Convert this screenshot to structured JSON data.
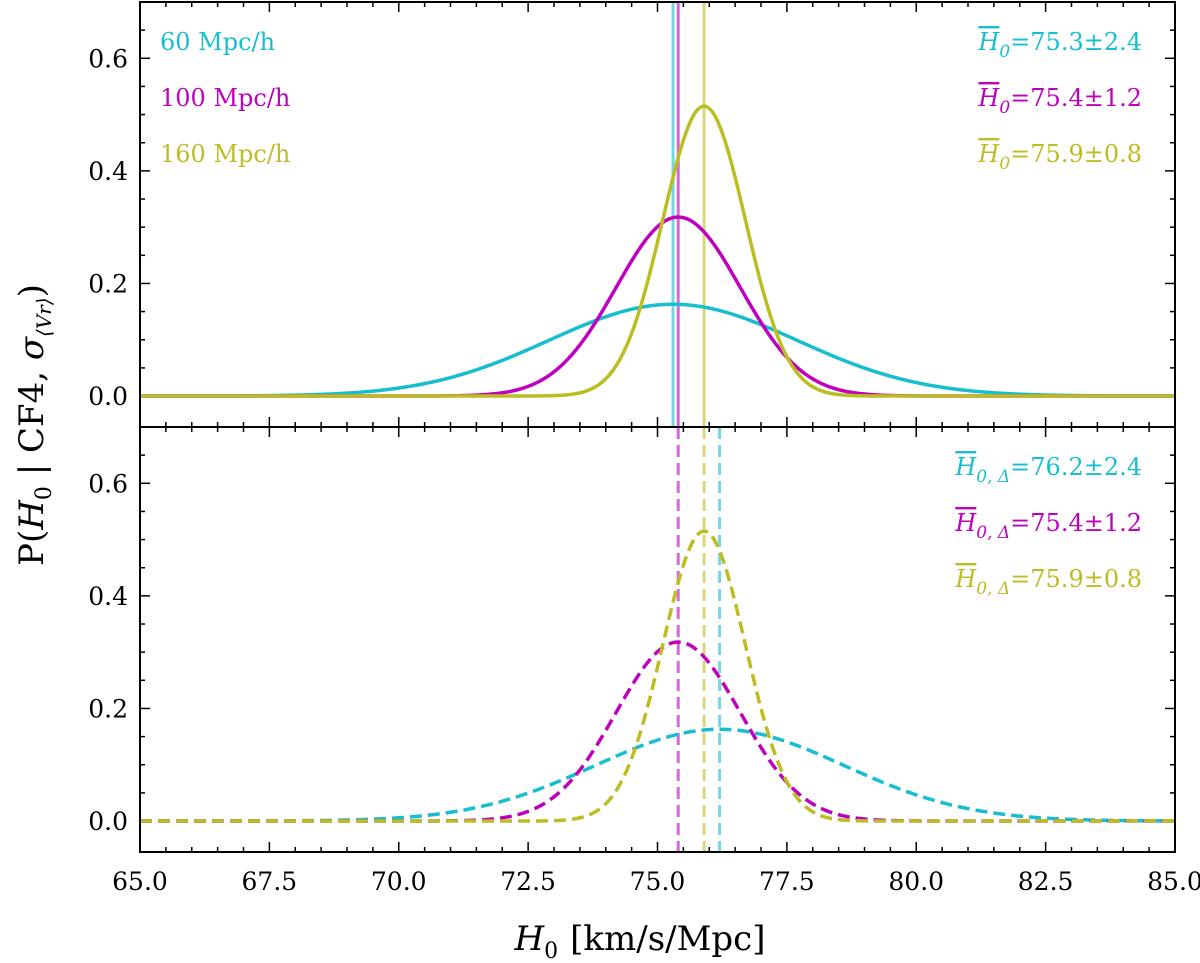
{
  "chart_data": {
    "type": "line",
    "xlabel": "H0 [km/s/Mpc]",
    "xlabel_parts": {
      "symbol": "H",
      "sub": "0",
      "units": "[km/s/Mpc]"
    },
    "ylabel": "P(H0 | CF4, σ⟨Vr⟩)",
    "ylabel_parts": {
      "prefix": "P(",
      "symbol": "H",
      "sub": "0",
      "mid": " | CF4, ",
      "sigma": "σ",
      "sub2": "⟨Vr⟩",
      "suffix": ")"
    },
    "xlim": [
      65.0,
      85.0
    ],
    "ylim": [
      -0.055,
      0.7
    ],
    "x_ticks": [
      "65.0",
      "67.5",
      "70.0",
      "72.5",
      "75.0",
      "77.5",
      "80.0",
      "82.5",
      "85.0"
    ],
    "y_ticks": [
      "0.0",
      "0.2",
      "0.4",
      "0.6"
    ],
    "colors": {
      "s60": "#17becf",
      "s100": "#bf00bf",
      "s160": "#bcbd22"
    },
    "panels": [
      {
        "name": "top",
        "linestyle": "solid",
        "legend_left": [
          "60 Mpc/h",
          "100 Mpc/h",
          "160 Mpc/h"
        ],
        "series": [
          {
            "name": "60 Mpc/h",
            "color_key": "s60",
            "mean": 75.3,
            "sigma": 2.4,
            "peak": 0.163,
            "label_symbol": "H",
            "label_sub": "0",
            "label_value": "=75.3±2.4"
          },
          {
            "name": "100 Mpc/h",
            "color_key": "s100",
            "mean": 75.4,
            "sigma": 1.2,
            "peak": 0.318,
            "label_symbol": "H",
            "label_sub": "0",
            "label_value": "=75.4±1.2"
          },
          {
            "name": "160 Mpc/h",
            "color_key": "s160",
            "mean": 75.9,
            "sigma": 0.8,
            "peak": 0.515,
            "label_symbol": "H",
            "label_sub": "0",
            "label_value": "=75.9±0.8"
          }
        ]
      },
      {
        "name": "bottom",
        "linestyle": "dashed",
        "series": [
          {
            "name": "60 Mpc/h",
            "color_key": "s60",
            "mean": 76.2,
            "sigma": 2.4,
            "peak": 0.163,
            "label_symbol": "H",
            "label_sub": "0, Δ",
            "label_value": "=76.2±2.4"
          },
          {
            "name": "100 Mpc/h",
            "color_key": "s100",
            "mean": 75.4,
            "sigma": 1.2,
            "peak": 0.318,
            "label_symbol": "H",
            "label_sub": "0, Δ",
            "label_value": "=75.4±1.2"
          },
          {
            "name": "160 Mpc/h",
            "color_key": "s160",
            "mean": 75.9,
            "sigma": 0.8,
            "peak": 0.515,
            "label_symbol": "H",
            "label_sub": "0, Δ",
            "label_value": "=75.9±0.8"
          }
        ]
      }
    ]
  }
}
